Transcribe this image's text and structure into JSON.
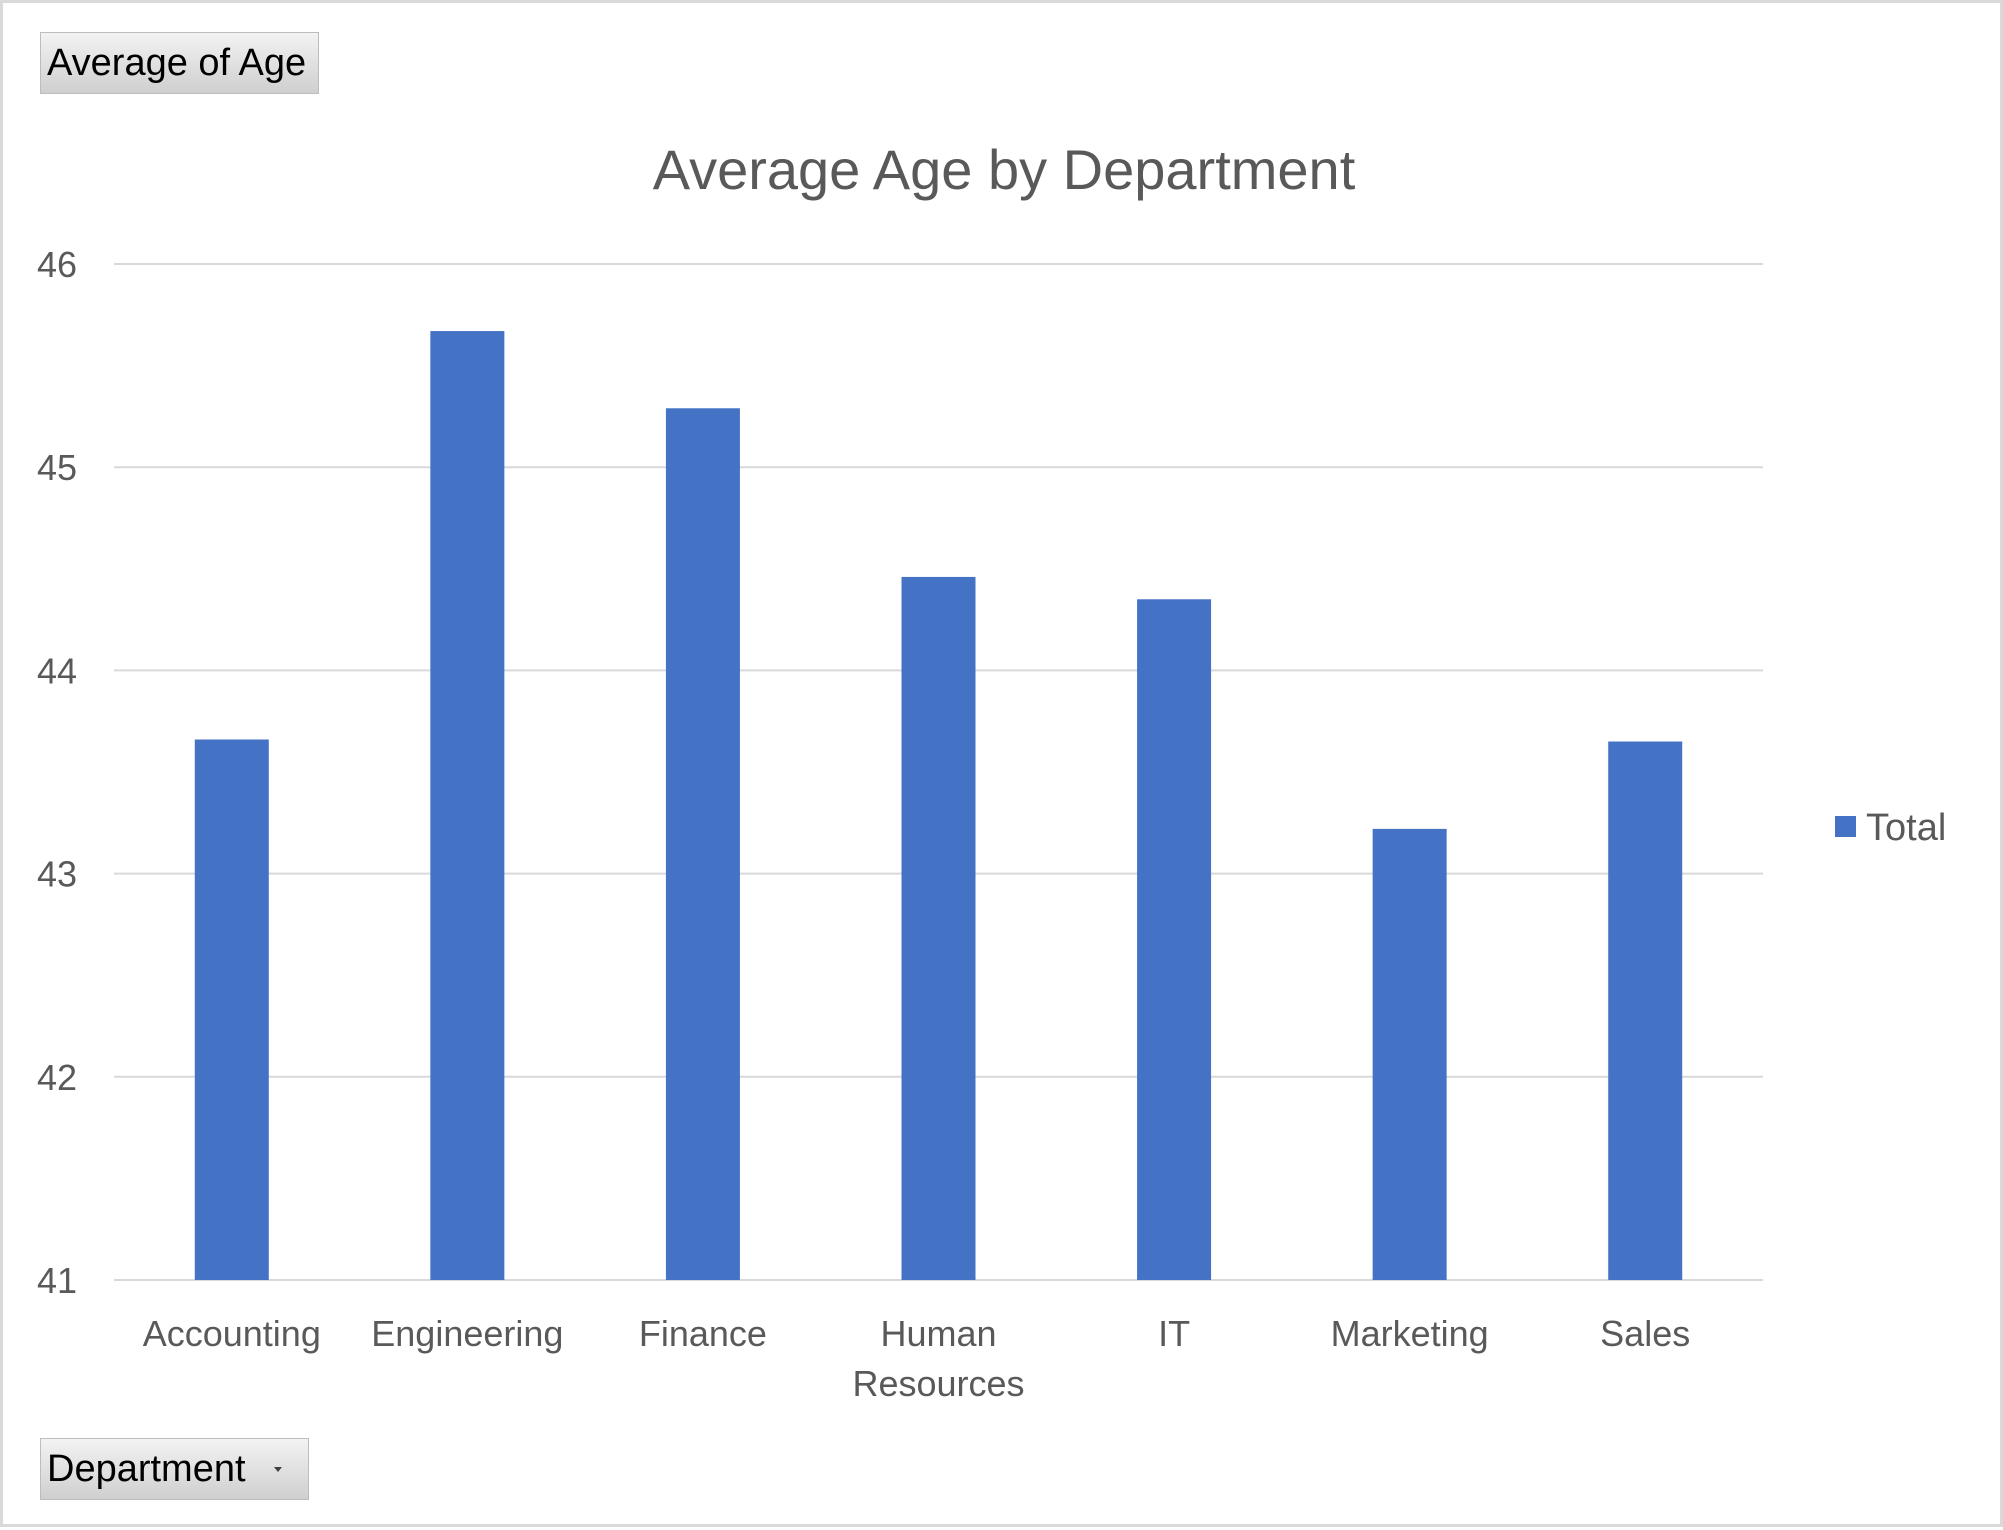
{
  "field_buttons": {
    "value_field": "Average  of Age",
    "axis_field": "Department"
  },
  "chart_data": {
    "type": "bar",
    "title": "Average Age by Department",
    "xlabel": "",
    "ylabel": "",
    "categories": [
      "Accounting",
      "Engineering",
      "Finance",
      "Human Resources",
      "IT",
      "Marketing",
      "Sales"
    ],
    "series": [
      {
        "name": "Total",
        "values": [
          43.66,
          45.67,
          45.29,
          44.46,
          44.35,
          43.22,
          43.65
        ],
        "color": "#4472c4"
      }
    ],
    "ylim": [
      41,
      46
    ],
    "yticks": [
      "41",
      "42",
      "43",
      "44",
      "45",
      "46"
    ],
    "grid": true,
    "legend_position": "right",
    "colors": {
      "bar": "#4472c4",
      "gridline": "#d9d9d9",
      "text": "#595959"
    }
  }
}
